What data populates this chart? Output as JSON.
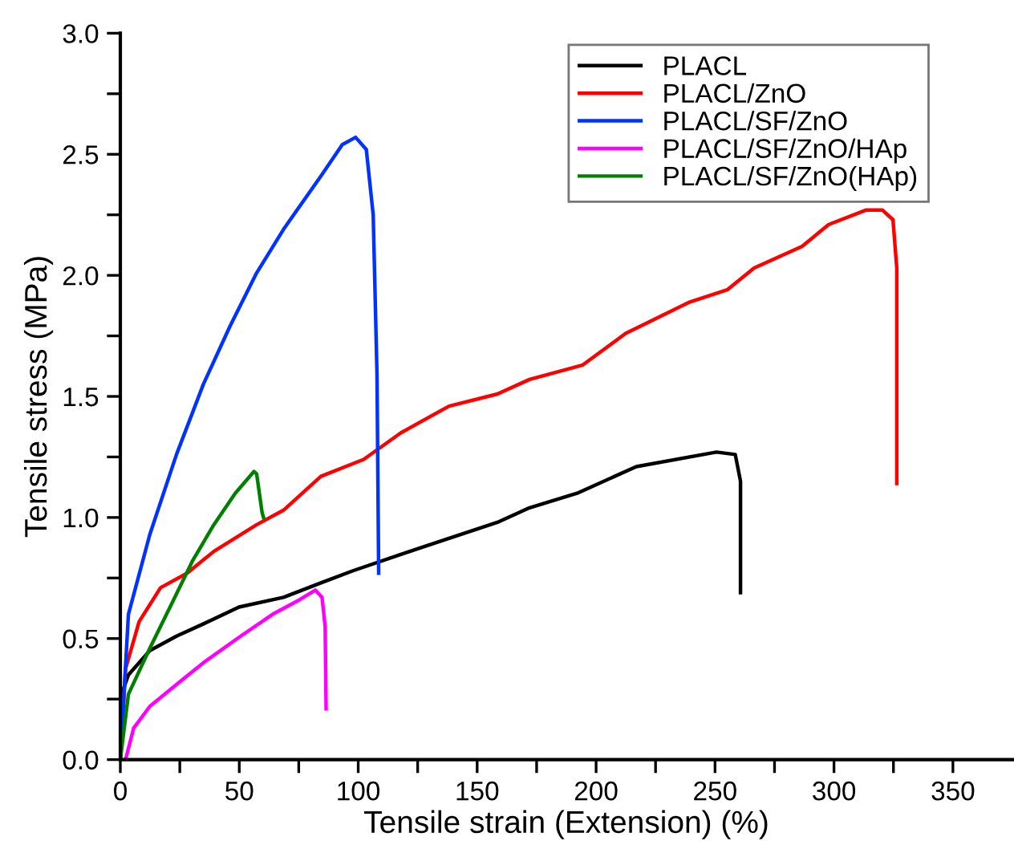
{
  "chart_data": {
    "type": "line",
    "xlabel": "Tensile strain (Extension) (%)",
    "ylabel": "Tensile stress (MPa)",
    "xlim": [
      0,
      375
    ],
    "ylim": [
      0,
      3.0
    ],
    "xticks": [
      0,
      {
        "value": 25,
        "label": null
      },
      50,
      {
        "value": 75,
        "label": null
      },
      100,
      {
        "value": 125,
        "label": null
      },
      150,
      {
        "value": 175,
        "label": null
      },
      200,
      {
        "value": 225,
        "label": null
      },
      250,
      {
        "value": 275,
        "label": null
      },
      300,
      {
        "value": 325,
        "label": null
      },
      350
    ],
    "yticks": [
      {
        "value": 0,
        "label": "0.0"
      },
      {
        "value": 0.25,
        "label": null
      },
      {
        "value": 0.5,
        "label": "0.5"
      },
      {
        "value": 0.75,
        "label": null
      },
      {
        "value": 1.0,
        "label": "1.0"
      },
      {
        "value": 1.25,
        "label": null
      },
      {
        "value": 1.5,
        "label": "1.5"
      },
      {
        "value": 1.75,
        "label": null
      },
      {
        "value": 2.0,
        "label": "2.0"
      },
      {
        "value": 2.25,
        "label": null
      },
      {
        "value": 2.5,
        "label": "2.5"
      },
      {
        "value": 2.75,
        "label": null
      },
      {
        "value": 3.0,
        "label": "3.0"
      }
    ],
    "grid": false,
    "legend": "top right",
    "marker": "none",
    "line_style": "solid",
    "series": [
      {
        "name": "PLACL",
        "color": "#000000",
        "x": [
          0,
          0.5,
          3.4,
          12.4,
          23.6,
          34.8,
          49.9,
          68.6,
          84.3,
          97.8,
          124.7,
          158.5,
          172,
          192,
          216.9,
          250.6,
          258.5,
          260.7,
          260.7
        ],
        "values": [
          0,
          0.27,
          0.35,
          0.45,
          0.51,
          0.56,
          0.63,
          0.67,
          0.73,
          0.78,
          0.87,
          0.98,
          1.04,
          1.1,
          1.21,
          1.27,
          1.26,
          1.15,
          0.69
        ]
      },
      {
        "name": "PLACL/ZnO",
        "color": "#ff0000",
        "x": [
          0,
          2.2,
          7.9,
          16.9,
          28.1,
          39.3,
          57.3,
          68.6,
          84.3,
          102.3,
          118,
          138.2,
          158.5,
          172,
          194.4,
          212.4,
          239.4,
          255.1,
          266.4,
          286.6,
          297.8,
          313.6,
          320.3,
          324.8,
          326.4,
          326.4
        ],
        "values": [
          0,
          0.375,
          0.57,
          0.71,
          0.77,
          0.86,
          0.97,
          1.03,
          1.17,
          1.24,
          1.35,
          1.46,
          1.51,
          1.57,
          1.63,
          1.76,
          1.89,
          1.94,
          2.03,
          2.12,
          2.21,
          2.27,
          2.27,
          2.23,
          2.03,
          1.14
        ]
      },
      {
        "name": "PLACL/SF/ZnO",
        "color": "#0033ff",
        "x": [
          0,
          3.4,
          12.4,
          23.6,
          34.9,
          46.1,
          57.3,
          68.6,
          84.3,
          93.3,
          98.9,
          103.4,
          106.3,
          107.9,
          108.6
        ],
        "values": [
          0,
          0.6,
          0.93,
          1.26,
          1.55,
          1.79,
          2.01,
          2.19,
          2.41,
          2.54,
          2.57,
          2.52,
          2.25,
          1.59,
          0.77
        ]
      },
      {
        "name": "PLACL/SF/ZnO/HAp",
        "color": "#ff00ff",
        "x": [
          2.2,
          5.6,
          12.4,
          23.6,
          34.9,
          50.6,
          64,
          75.3,
          82,
          84.8,
          86.1,
          86.5
        ],
        "values": [
          0,
          0.13,
          0.22,
          0.31,
          0.4,
          0.51,
          0.6,
          0.66,
          0.7,
          0.67,
          0.55,
          0.21
        ]
      },
      {
        "name": "PLACL/SF/ZnO(HAp)",
        "color": "#008000",
        "x": [
          0,
          3.4,
          12.4,
          21.4,
          30.3,
          39.3,
          48.3,
          56.2,
          57.3,
          59.6,
          60.2
        ],
        "values": [
          0,
          0.27,
          0.46,
          0.64,
          0.82,
          0.97,
          1.1,
          1.19,
          1.18,
          1.02,
          1.0
        ]
      }
    ]
  }
}
